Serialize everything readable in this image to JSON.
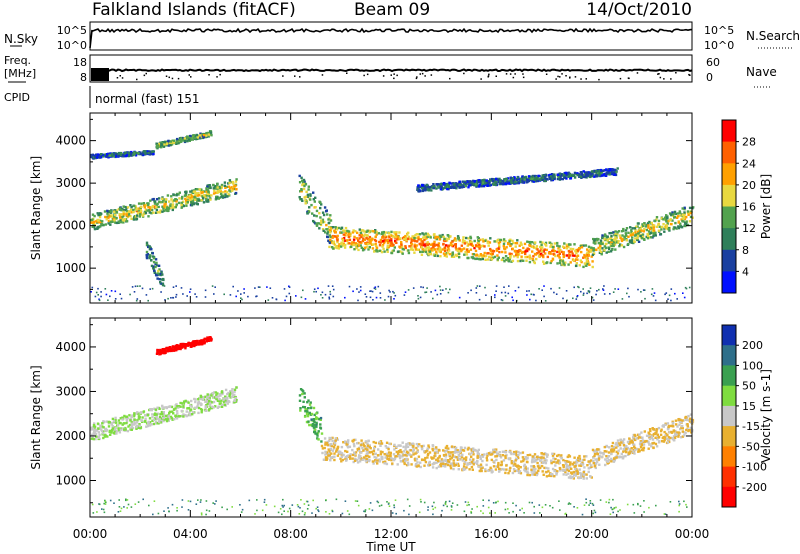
{
  "header": {
    "title": "Falkland Islands (fitACF)",
    "beam": "Beam 09",
    "date": "14/Oct/2010"
  },
  "panels": {
    "nsky": {
      "label": "N.Sky",
      "ticks": [
        "10^5",
        "10^0"
      ],
      "right_label": "N.Search",
      "right_ticks": [
        "10^5",
        "10^0"
      ]
    },
    "freq": {
      "label_top": "Freq.",
      "label_bottom": "[MHz]",
      "ticks": [
        "18",
        "8"
      ],
      "right_label": "Nave",
      "right_ticks": [
        "60",
        "0"
      ]
    },
    "cpid": {
      "label": "CPID",
      "text": "normal (fast) 151"
    }
  },
  "chart_data": [
    {
      "type": "heatmap",
      "name": "power",
      "ylabel": "Slant Range [km]",
      "yticks": [
        1000,
        2000,
        3000,
        4000
      ],
      "ylim": [
        180,
        4650
      ],
      "colorbar": {
        "label": "Power [dB]",
        "ticks": [
          "28",
          "24",
          "20",
          "16",
          "12",
          "8",
          "4"
        ],
        "colors": [
          "#ff0000",
          "#ff6000",
          "#ffa000",
          "#e8d840",
          "#52a24e",
          "#2f7f5a",
          "#1a40a0",
          "#0010ff"
        ]
      },
      "regions": [
        {
          "t0": 0.0,
          "t1": 5.8,
          "r_start": 2100,
          "r_end": 2950,
          "width": 380,
          "level": 0.62
        },
        {
          "t0": 2.2,
          "t1": 2.9,
          "r_start": 1500,
          "r_end": 700,
          "width": 420,
          "level": 0.4
        },
        {
          "t0": 2.6,
          "t1": 4.8,
          "r_start": 3900,
          "r_end": 4200,
          "width": 120,
          "level": 0.5
        },
        {
          "t0": 0.0,
          "t1": 2.5,
          "r_start": 3650,
          "r_end": 3750,
          "width": 90,
          "level": 0.3
        },
        {
          "t0": 8.3,
          "t1": 9.6,
          "r_start": 2900,
          "r_end": 1900,
          "width": 700,
          "level": 0.55
        },
        {
          "t0": 9.5,
          "t1": 20.0,
          "r_start": 1750,
          "r_end": 1300,
          "width": 520,
          "level": 0.8
        },
        {
          "t0": 20.0,
          "t1": 24.0,
          "r_start": 1500,
          "r_end": 2300,
          "width": 450,
          "level": 0.6
        },
        {
          "t0": 13.0,
          "t1": 21.0,
          "r_start": 2900,
          "r_end": 3300,
          "width": 150,
          "level": 0.3
        }
      ]
    },
    {
      "type": "heatmap",
      "name": "velocity",
      "xlabel": "Time UT",
      "xticks": [
        "00:00",
        "04:00",
        "08:00",
        "12:00",
        "16:00",
        "20:00",
        "00:00"
      ],
      "ylabel": "Slant Range [km]",
      "yticks": [
        1000,
        2000,
        3000,
        4000
      ],
      "ylim": [
        180,
        4650
      ],
      "colorbar": {
        "label": "Velocity [m s-1]",
        "ticks": [
          "200",
          "100",
          "50",
          "15",
          "-15",
          "-50",
          "-100",
          "-200"
        ],
        "colors": [
          "#1030b0",
          "#2e6f8a",
          "#3aa050",
          "#7fdc40",
          "#c8c8c8",
          "#e8b030",
          "#ff8000",
          "#ff3000",
          "#ff0000"
        ]
      },
      "regions": [
        {
          "t0": 0.0,
          "t1": 5.8,
          "r_start": 2100,
          "r_end": 2950,
          "width": 380,
          "level": 0.55
        },
        {
          "t0": 2.6,
          "t1": 4.8,
          "r_start": 3900,
          "r_end": 4200,
          "width": 120,
          "level": 0.0
        },
        {
          "t0": 8.3,
          "t1": 9.2,
          "r_start": 2900,
          "r_end": 2100,
          "width": 600,
          "level": 0.7
        },
        {
          "t0": 9.2,
          "t1": 20.0,
          "r_start": 1750,
          "r_end": 1300,
          "width": 520,
          "level": 0.45
        },
        {
          "t0": 20.0,
          "t1": 24.0,
          "r_start": 1500,
          "r_end": 2300,
          "width": 450,
          "level": 0.45
        }
      ]
    }
  ]
}
